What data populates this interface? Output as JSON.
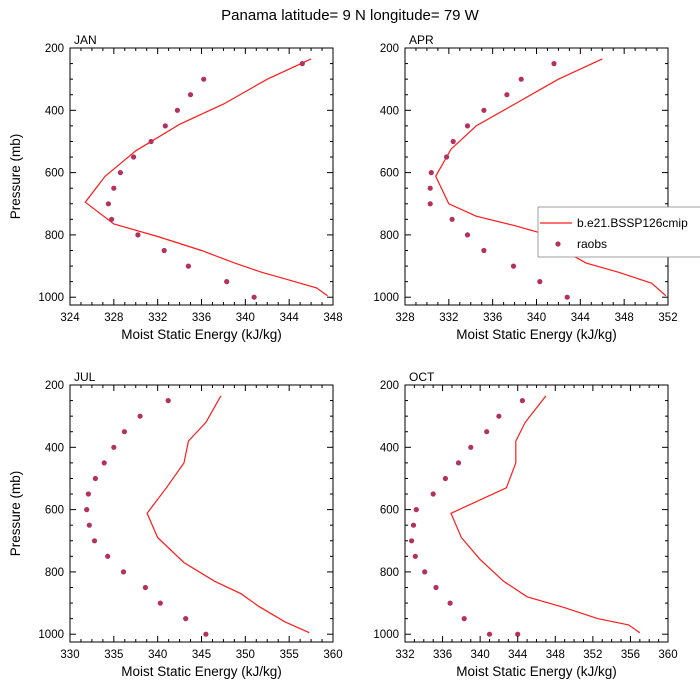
{
  "title": "Panama  latitude= 9 N longitude= 79 W",
  "colors": {
    "model": "#ff1a1a",
    "obs": "#b3305f"
  },
  "legend": {
    "model_label": "b.e21.BSSP126cmip",
    "obs_label": "raobs"
  },
  "chart_data": [
    {
      "type": "line",
      "title": "JAN",
      "xlabel": "Moist Static Energy (kJ/kg)",
      "ylabel": "Pressure (mb)",
      "xlim": [
        324,
        348
      ],
      "ylim": [
        200,
        1025
      ],
      "yreversed": true,
      "xticks": [
        "324",
        "328",
        "332",
        "336",
        "340",
        "344",
        "348"
      ],
      "xtickvals": [
        324,
        328,
        332,
        336,
        340,
        344,
        348
      ],
      "yticks": [
        "200",
        "400",
        "600",
        "800",
        "1000"
      ],
      "ytickvals": [
        200,
        400,
        600,
        800,
        1000
      ],
      "series": [
        {
          "name": "b.e21.BSSP126cmip",
          "kind": "line",
          "x": [
            346.0,
            342.0,
            338.0,
            334.0,
            330.0,
            327.2,
            325.4,
            328.0,
            332.0,
            336.0,
            339.0,
            341.5,
            344.0,
            346.5,
            347.5
          ],
          "y": [
            235,
            300,
            380,
            445,
            530,
            612,
            695,
            765,
            805,
            850,
            890,
            920,
            945,
            970,
            995
          ]
        },
        {
          "name": "raobs",
          "kind": "scatter",
          "x": [
            345.2,
            336.2,
            335.0,
            333.8,
            332.7,
            331.4,
            329.8,
            328.6,
            328.0,
            327.5,
            327.8,
            330.2,
            332.6,
            334.8,
            338.3,
            340.8
          ],
          "y": [
            250,
            300,
            350,
            400,
            450,
            500,
            550,
            600,
            650,
            700,
            750,
            800,
            850,
            900,
            950,
            1000
          ]
        }
      ]
    },
    {
      "type": "line",
      "title": "APR",
      "xlabel": "Moist Static Energy (kJ/kg)",
      "ylabel": "",
      "xlim": [
        328,
        352
      ],
      "ylim": [
        200,
        1025
      ],
      "yreversed": true,
      "xticks": [
        "328",
        "332",
        "336",
        "340",
        "344",
        "348",
        "352"
      ],
      "xtickvals": [
        328,
        332,
        336,
        340,
        344,
        348,
        352
      ],
      "yticks": [
        "200",
        "400",
        "600",
        "800",
        "1000"
      ],
      "ytickvals": [
        200,
        400,
        600,
        800,
        1000
      ],
      "series": [
        {
          "name": "b.e21.BSSP126cmip",
          "kind": "line",
          "x": [
            346.0,
            342.0,
            338.0,
            334.5,
            332.2,
            330.8,
            332.0,
            334.5,
            338.0,
            341.0,
            343.0,
            344.5,
            347.5,
            350.5,
            351.8
          ],
          "y": [
            235,
            300,
            380,
            450,
            525,
            612,
            700,
            740,
            770,
            800,
            860,
            890,
            920,
            955,
            995
          ]
        },
        {
          "name": "raobs",
          "kind": "scatter",
          "x": [
            341.6,
            338.6,
            337.3,
            335.2,
            333.7,
            332.4,
            331.8,
            330.4,
            330.3,
            330.3,
            332.3,
            333.7,
            335.2,
            337.9,
            340.3,
            342.8
          ],
          "y": [
            250,
            300,
            350,
            400,
            450,
            500,
            550,
            600,
            650,
            700,
            750,
            800,
            850,
            900,
            950,
            1000
          ]
        }
      ]
    },
    {
      "type": "line",
      "title": "JUL",
      "xlabel": "Moist Static Energy (kJ/kg)",
      "ylabel": "Pressure (mb)",
      "xlim": [
        330,
        360
      ],
      "ylim": [
        200,
        1025
      ],
      "yreversed": true,
      "xticks": [
        "330",
        "335",
        "340",
        "345",
        "350",
        "355",
        "360"
      ],
      "xtickvals": [
        330,
        335,
        340,
        345,
        350,
        355,
        360
      ],
      "yticks": [
        "200",
        "400",
        "600",
        "800",
        "1000"
      ],
      "ytickvals": [
        200,
        400,
        600,
        800,
        1000
      ],
      "series": [
        {
          "name": "b.e21.BSSP126cmip",
          "kind": "line",
          "x": [
            347.2,
            345.5,
            343.5,
            343.0,
            341.0,
            338.8,
            340.0,
            343.0,
            346.5,
            349.5,
            351.5,
            354.5,
            357.3
          ],
          "y": [
            235,
            320,
            380,
            450,
            530,
            612,
            690,
            770,
            830,
            870,
            910,
            960,
            995
          ]
        },
        {
          "name": "raobs",
          "kind": "scatter",
          "x": [
            341.2,
            338.0,
            336.2,
            335.0,
            333.9,
            332.9,
            332.1,
            331.9,
            332.2,
            332.8,
            334.3,
            336.1,
            338.6,
            340.3,
            343.2,
            345.5
          ],
          "y": [
            250,
            300,
            350,
            400,
            450,
            500,
            550,
            600,
            650,
            700,
            750,
            800,
            850,
            900,
            950,
            1000
          ]
        }
      ]
    },
    {
      "type": "line",
      "title": "OCT",
      "xlabel": "Moist Static Energy (kJ/kg)",
      "ylabel": "",
      "xlim": [
        332,
        360
      ],
      "ylim": [
        200,
        1025
      ],
      "yreversed": true,
      "xticks": [
        "332",
        "336",
        "340",
        "344",
        "348",
        "352",
        "356",
        "360"
      ],
      "xtickvals": [
        332,
        336,
        340,
        344,
        348,
        352,
        356,
        360
      ],
      "yticks": [
        "200",
        "400",
        "600",
        "800",
        "1000"
      ],
      "ytickvals": [
        200,
        400,
        600,
        800,
        1000
      ],
      "series": [
        {
          "name": "b.e21.BSSP126cmip",
          "kind": "line",
          "x": [
            347.0,
            344.8,
            343.8,
            343.8,
            342.8,
            336.9,
            338.0,
            340.0,
            342.5,
            345.0,
            349.0,
            352.5,
            355.8,
            357.0
          ],
          "y": [
            235,
            320,
            380,
            450,
            530,
            612,
            690,
            760,
            830,
            880,
            915,
            950,
            970,
            995
          ]
        },
        {
          "name": "raobs",
          "kind": "scatter",
          "x": [
            344.5,
            342.0,
            340.7,
            339.0,
            337.7,
            336.3,
            335.0,
            333.2,
            332.9,
            332.7,
            333.1,
            334.1,
            335.3,
            336.8,
            338.3,
            341.0,
            344.0
          ],
          "y": [
            250,
            300,
            350,
            400,
            450,
            500,
            550,
            600,
            650,
            700,
            750,
            800,
            850,
            900,
            950,
            1000,
            1000
          ]
        }
      ]
    }
  ]
}
